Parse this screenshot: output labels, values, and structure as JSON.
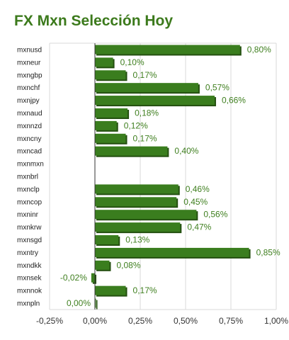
{
  "chart_data": {
    "type": "bar",
    "orientation": "horizontal",
    "title": "FX Mxn Selección Hoy",
    "categories": [
      "mxnusd",
      "mxneur",
      "mxngbp",
      "mxnchf",
      "mxnjpy",
      "mxnaud",
      "mxnnzd",
      "mxncny",
      "mxncad",
      "mxnmxn",
      "mxnbrl",
      "mxnclp",
      "mxncop",
      "mxninr",
      "mxnkrw",
      "mxnsgd",
      "mxntry",
      "mxndkk",
      "mxnsek",
      "mxnnok",
      "mxnpln"
    ],
    "values": [
      0.8,
      0.1,
      0.17,
      0.57,
      0.66,
      0.18,
      0.12,
      0.17,
      0.4,
      null,
      null,
      0.46,
      0.45,
      0.56,
      0.47,
      0.13,
      0.85,
      0.08,
      -0.02,
      0.17,
      0.0
    ],
    "value_labels": [
      "0,80%",
      "0,10%",
      "0,17%",
      "0,57%",
      "0,66%",
      "0,18%",
      "0,12%",
      "0,17%",
      "0,40%",
      "",
      "",
      "0,46%",
      "0,45%",
      "0,56%",
      "0,47%",
      "0,13%",
      "0,85%",
      "0,08%",
      "-0,02%",
      "0,17%",
      "0,00%"
    ],
    "xlim": [
      -0.25,
      1.0
    ],
    "ticks": [
      -0.25,
      0.0,
      0.25,
      0.5,
      0.75,
      1.0
    ],
    "tick_labels": [
      "-0,25%",
      "0,00%",
      "0,25%",
      "0,50%",
      "0,75%",
      "1,00%"
    ],
    "grid": true,
    "legend": "none",
    "colors": {
      "bar": "#3a7d1e",
      "bar_side": "#245010",
      "title": "#3c7a1c",
      "label": "#3f7f1f",
      "grid": "#d9d9d9",
      "axis": "#333333"
    }
  }
}
